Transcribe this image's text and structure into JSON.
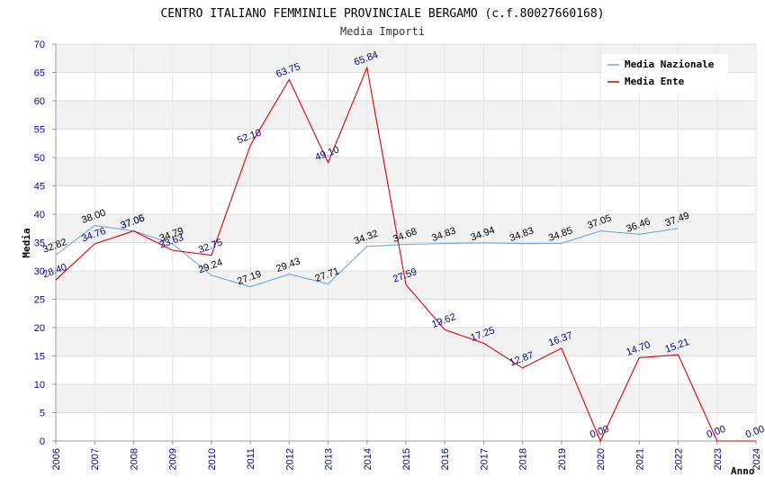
{
  "chart_data": {
    "type": "line",
    "title": "CENTRO ITALIANO FEMMINILE PROVINCIALE BERGAMO (c.f.80027660168)",
    "subtitle": "Media Importi",
    "xlabel": "Anno",
    "ylabel": "Media",
    "ylim": [
      0,
      70
    ],
    "yticks": [
      "0",
      "5",
      "10",
      "15",
      "20",
      "25",
      "30",
      "35",
      "40",
      "45",
      "50",
      "55",
      "60",
      "65",
      "70"
    ],
    "categories": [
      "2006",
      "2007",
      "2008",
      "2009",
      "2010",
      "2011",
      "2012",
      "2013",
      "2014",
      "2015",
      "2016",
      "2017",
      "2018",
      "2019",
      "2020",
      "2021",
      "2022",
      "2023",
      "2024"
    ],
    "series": [
      {
        "name": "Media Nazionale",
        "color": "#6fa8dc",
        "label_color": "#000000",
        "values": [
          32.82,
          38.0,
          37.06,
          34.79,
          29.24,
          27.19,
          29.43,
          27.71,
          34.32,
          34.68,
          34.83,
          34.94,
          34.83,
          34.85,
          37.05,
          36.46,
          37.49,
          null,
          null
        ],
        "labels": [
          "32.82",
          "38.00",
          "37.06",
          "34.79",
          "29.24",
          "27.19",
          "29.43",
          "27.71",
          "34.32",
          "34.68",
          "34.83",
          "34.94",
          "34.83",
          "34.85",
          "37.05",
          "36.46",
          "37.49",
          null,
          null
        ]
      },
      {
        "name": "Media Ente",
        "color": "#dd0000",
        "label_color": "#000080",
        "values": [
          28.4,
          34.76,
          37.05,
          33.63,
          32.75,
          52.1,
          63.75,
          49.1,
          65.84,
          27.59,
          19.62,
          17.25,
          12.87,
          16.37,
          0.0,
          14.7,
          15.21,
          0.0,
          0.0
        ],
        "labels": [
          "28.40",
          "34.76",
          "37.05",
          "33.63",
          "32.75",
          "52.10",
          "63.75",
          "49.10",
          "65.84",
          "27.59",
          "19.62",
          "17.25",
          "12.87",
          "16.37",
          "0.00",
          "14.70",
          "15.21",
          "0.00",
          "0.00"
        ]
      }
    ],
    "legend": "top-right",
    "grid": true
  }
}
